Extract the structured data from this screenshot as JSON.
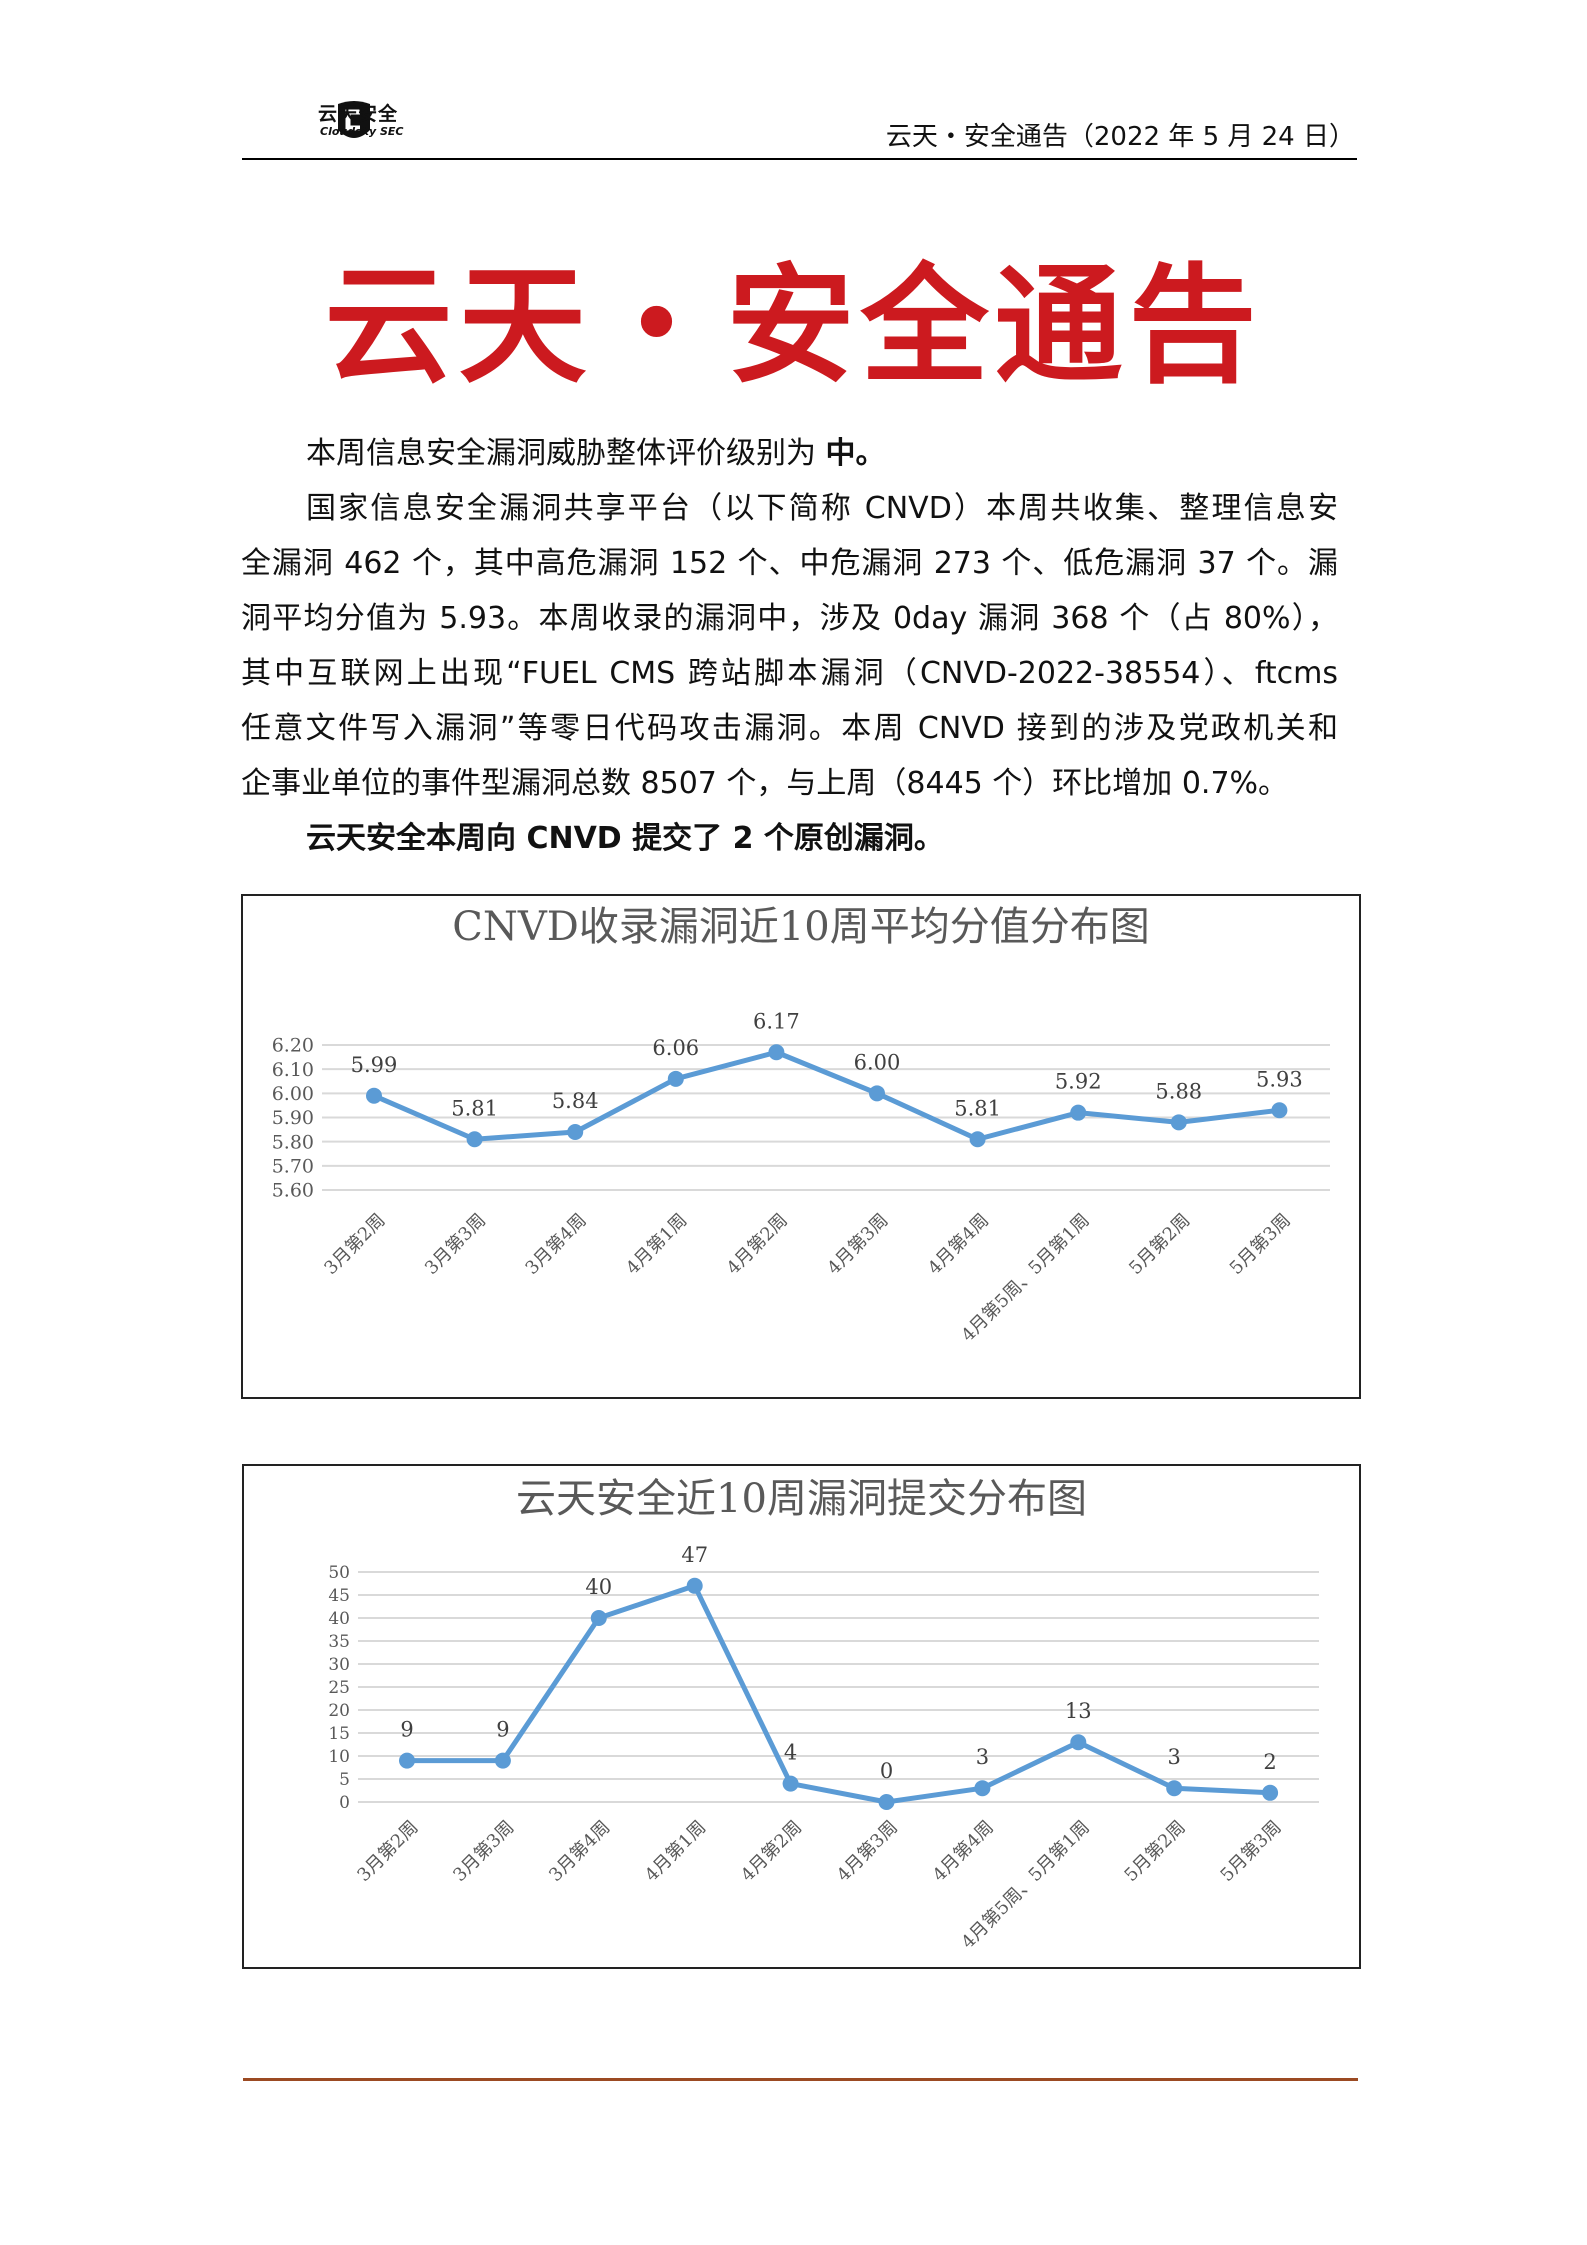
{
  "header": {
    "logo_text": "云天安全",
    "logo_sub": "Cloudsky SEC",
    "date_title": "云天・安全通告（2022 年 5 月 24 日）"
  },
  "title": "云天・安全通告",
  "body": {
    "p1": [
      "本周信息安全漏洞威胁整体评价级别为 ",
      "中。"
    ],
    "p2_lines": [
      "国家信息安全漏洞共享平台（以下简称 CNVD）本周共收集、整理信息安",
      "全漏洞 462 个，其中高危漏洞 152 个、中危漏洞 273 个、低危漏洞 37 个。漏",
      "洞平均分值为 5.93。本周收录的漏洞中，涉及 0day 漏洞 368 个（占 80%），",
      "其中互联网上出现“FUEL CMS 跨站脚本漏洞（CNVD-2022-38554）、ftcms",
      "任意文件写入漏洞”等零日代码攻击漏洞。本周 CNVD 接到的涉及党政机关和",
      "企事业单位的事件型漏洞总数 8507 个，与上周（8445 个）环比增加 0.7%。"
    ],
    "p3": "云天安全本周向 CNVD 提交了 2 个原创漏洞。"
  },
  "chart_data": [
    {
      "type": "line",
      "title": "CNVD收录漏洞近10周平均分值分布图",
      "categories": [
        "3月第2周",
        "3月第3周",
        "3月第4周",
        "4月第1周",
        "4月第2周",
        "4月第3周",
        "4月第4周",
        "4月第5周、5月第1周",
        "5月第2周",
        "5月第3周"
      ],
      "values": [
        5.99,
        5.81,
        5.84,
        6.06,
        6.17,
        6.0,
        5.81,
        5.92,
        5.88,
        5.93
      ],
      "data_labels": [
        "5.99",
        "5.81",
        "5.84",
        "6.06",
        "6.17",
        "6.00",
        "5.81",
        "5.92",
        "5.88",
        "5.93"
      ],
      "yticks": [
        "5.60",
        "5.70",
        "5.80",
        "5.90",
        "6.00",
        "6.10",
        "6.20"
      ],
      "ylim": [
        5.6,
        6.2
      ],
      "grid": true,
      "color": "#5b9bd5"
    },
    {
      "type": "line",
      "title": "云天安全近10周漏洞提交分布图",
      "categories": [
        "3月第2周",
        "3月第3周",
        "3月第4周",
        "4月第1周",
        "4月第2周",
        "4月第3周",
        "4月第4周",
        "4月第5周、5月第1周",
        "5月第2周",
        "5月第3周"
      ],
      "values": [
        9,
        9,
        40,
        47,
        4,
        0,
        3,
        13,
        3,
        2
      ],
      "data_labels": [
        "9",
        "9",
        "40",
        "47",
        "4",
        "0",
        "3",
        "13",
        "3",
        "2"
      ],
      "yticks": [
        "0",
        "5",
        "10",
        "15",
        "20",
        "25",
        "30",
        "35",
        "40",
        "45",
        "50"
      ],
      "ylim": [
        0,
        50
      ],
      "grid": true,
      "color": "#5b9bd5"
    }
  ]
}
